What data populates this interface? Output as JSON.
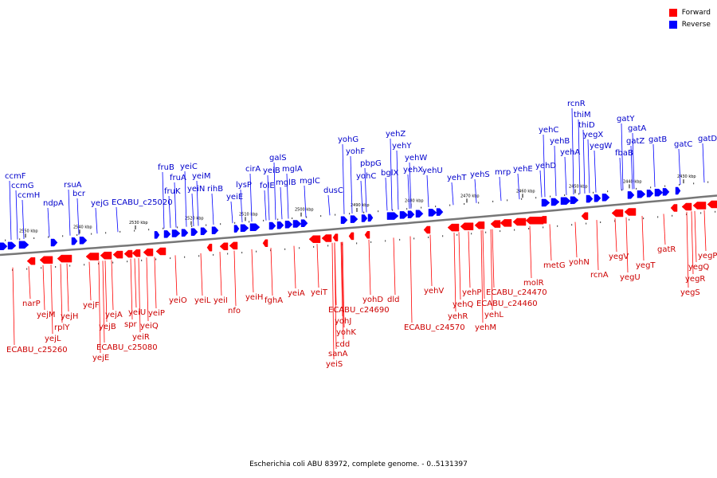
{
  "caption": "Escherichia coli ABU 83972, complete genome. - 0..5131397",
  "legend": {
    "forward_label": "Forward",
    "reverse_label": "Reverse",
    "forward_color": "#ff0000",
    "reverse_color": "#0000ff"
  },
  "colors": {
    "forward_text": "#cc0000",
    "reverse_text": "#0000cc",
    "backbone": "#777777"
  },
  "ticks": [
    "2550 kbp",
    "2540 kbp",
    "2530 kbp",
    "2520 kbp",
    "2510 kbp",
    "2500 kbp",
    "2490 kbp",
    "2480 kbp",
    "2470 kbp",
    "2460 kbp",
    "2450 kbp",
    "2440 kbp",
    "2430 kbp"
  ],
  "reverse_genes": [
    "ccmF",
    "ccmG",
    "ccmH",
    "ndpA",
    "rsuA",
    "bcr",
    "yejG",
    "ECABU_c25020",
    "fruB",
    "fruA",
    "fruK",
    "yeiC",
    "yeiM",
    "yeiN",
    "rihB",
    "yeiE",
    "lysP",
    "cirA",
    "folE",
    "yeiB",
    "galS",
    "mglB",
    "mglA",
    "mglC",
    "dusC",
    "yohG",
    "yohF",
    "pbpG",
    "yohC",
    "bglX",
    "yehZ",
    "yehY",
    "yehX",
    "yehW",
    "yehU",
    "yehT",
    "yehS",
    "mrp",
    "yehE",
    "yehD",
    "yehC",
    "yehB",
    "yehA",
    "rcnR",
    "thiM",
    "thiD",
    "yegX",
    "yegW",
    "gatY",
    "gatA",
    "fbaB",
    "gatZ",
    "gatB",
    "gatC",
    "gatD"
  ],
  "forward_genes": [
    "narP",
    "yejM",
    "yejH",
    "rplY",
    "yejL",
    "ECABU_c25260",
    "yejF",
    "yejB",
    "yejA",
    "yejE",
    "ECABU_c25080",
    "spr",
    "yeiU",
    "yeiR",
    "yeiP",
    "yeiQ",
    "yeiO",
    "yeiL",
    "yeiI",
    "nfo",
    "yeiH",
    "fghA",
    "yeiA",
    "yeiT",
    "ECABU_c24690",
    "yohJ",
    "yohK",
    "cdd",
    "sanA",
    "yeiS",
    "yohD",
    "dld",
    "yehV",
    "ECABU_c24570",
    "yehQ",
    "yehR",
    "yehP",
    "yehM",
    "ECABU_c24470",
    "yehL",
    "ECABU_c24460",
    "molR",
    "metG",
    "yohN",
    "rcnA",
    "yegV",
    "yegU",
    "yegT",
    "gatR",
    "yegR",
    "yegS",
    "yegQ",
    "yegP"
  ]
}
